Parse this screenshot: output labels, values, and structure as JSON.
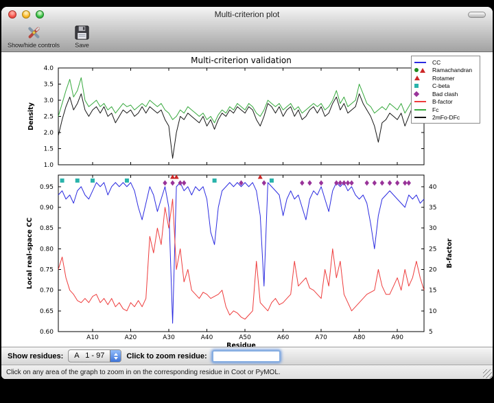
{
  "window": {
    "title": "Multi-criterion plot",
    "toolbar": {
      "controls_button": "Show/hide controls",
      "save_button": "Save"
    }
  },
  "controls": {
    "show_residues_label": "Show residues:",
    "chain_range_value": "A   1 - 97",
    "zoom_label": "Click to zoom residue:",
    "zoom_input_value": "",
    "status_text": "Click on any area of the graph to zoom in on the corresponding residue in Coot or PyMOL."
  },
  "chart_data": {
    "type": "line",
    "title": "Multi-criterion validation",
    "xlabel": "Residue",
    "x_range": [
      1,
      97
    ],
    "x_ticks": [
      [
        10,
        "A10"
      ],
      [
        20,
        "A20"
      ],
      [
        30,
        "A30"
      ],
      [
        40,
        "A40"
      ],
      [
        50,
        "A50"
      ],
      [
        60,
        "A60"
      ],
      [
        70,
        "A70"
      ],
      [
        80,
        "A80"
      ],
      [
        90,
        "A90"
      ]
    ],
    "top_plot": {
      "ylabel": "Density",
      "ylim": [
        1.0,
        4.0
      ],
      "yticks": [
        [
          4.0,
          "4.0"
        ],
        [
          3.5,
          "3.5"
        ],
        [
          3.0,
          "3.0"
        ],
        [
          2.5,
          "2.5"
        ],
        [
          2.0,
          "2.0"
        ],
        [
          1.5,
          "1.5"
        ],
        [
          1.0,
          "1.0"
        ]
      ],
      "series": [
        {
          "name": "Fc",
          "color": "#35a83c",
          "values": [
            2.5,
            2.9,
            3.3,
            3.65,
            3.1,
            3.3,
            3.7,
            3.0,
            2.8,
            2.9,
            3.0,
            2.8,
            2.9,
            2.7,
            2.8,
            2.6,
            2.75,
            2.9,
            2.8,
            2.85,
            2.7,
            2.8,
            2.9,
            2.8,
            3.0,
            2.9,
            2.8,
            2.9,
            2.7,
            2.6,
            2.4,
            2.5,
            2.7,
            2.6,
            2.8,
            2.7,
            2.6,
            2.5,
            2.6,
            2.4,
            2.5,
            2.3,
            2.55,
            2.7,
            2.6,
            2.8,
            2.7,
            2.9,
            2.8,
            2.7,
            2.9,
            2.8,
            2.6,
            2.5,
            2.7,
            3.0,
            2.9,
            2.8,
            2.9,
            2.7,
            2.8,
            2.9,
            2.7,
            2.8,
            2.6,
            2.7,
            2.8,
            2.9,
            2.8,
            2.9,
            2.7,
            2.8,
            3.0,
            3.3,
            2.9,
            3.1,
            2.8,
            2.9,
            3.0,
            3.5,
            3.2,
            2.9,
            2.8,
            2.6,
            2.7,
            2.8,
            2.7,
            2.9,
            2.8,
            2.7,
            2.9,
            2.6,
            2.8,
            3.0,
            3.2,
            3.4,
            2.9
          ]
        },
        {
          "name": "2mFo-DFc",
          "color": "#151515",
          "values": [
            1.9,
            2.4,
            2.8,
            3.1,
            2.7,
            2.9,
            3.2,
            2.7,
            2.5,
            2.7,
            2.8,
            2.6,
            2.8,
            2.5,
            2.6,
            2.3,
            2.5,
            2.7,
            2.6,
            2.7,
            2.5,
            2.6,
            2.8,
            2.6,
            2.8,
            2.7,
            2.6,
            2.7,
            2.4,
            2.2,
            1.2,
            2.0,
            2.5,
            2.4,
            2.6,
            2.5,
            2.4,
            2.3,
            2.5,
            2.2,
            2.4,
            2.1,
            2.4,
            2.6,
            2.5,
            2.7,
            2.6,
            2.8,
            2.7,
            2.6,
            2.8,
            2.7,
            2.4,
            2.2,
            2.5,
            2.9,
            2.8,
            2.6,
            2.8,
            2.5,
            2.7,
            2.8,
            2.5,
            2.7,
            2.4,
            2.5,
            2.7,
            2.8,
            2.6,
            2.8,
            2.5,
            2.6,
            2.9,
            3.1,
            2.7,
            2.9,
            2.6,
            2.7,
            2.8,
            3.2,
            2.9,
            2.7,
            2.5,
            2.2,
            1.7,
            2.3,
            2.4,
            2.6,
            2.5,
            2.4,
            2.6,
            2.2,
            2.5,
            2.8,
            3.0,
            3.2,
            2.6
          ]
        }
      ]
    },
    "bottom_plot": {
      "ylabel_left": "Local real-space CC",
      "ylim_left": [
        0.6,
        0.978
      ],
      "yticks_left": [
        [
          0.6,
          "0.60"
        ],
        [
          0.65,
          "0.65"
        ],
        [
          0.7,
          "0.70"
        ],
        [
          0.75,
          "0.75"
        ],
        [
          0.8,
          "0.80"
        ],
        [
          0.85,
          "0.85"
        ],
        [
          0.9,
          "0.90"
        ],
        [
          0.95,
          "0.95"
        ]
      ],
      "ylabel_right": "B-factor",
      "ylim_right": [
        5,
        42.8
      ],
      "yticks_right": [
        [
          5,
          "5"
        ],
        [
          10,
          "10"
        ],
        [
          15,
          "15"
        ],
        [
          20,
          "20"
        ],
        [
          25,
          "25"
        ],
        [
          30,
          "30"
        ],
        [
          35,
          "35"
        ],
        [
          40,
          "40"
        ]
      ],
      "series": [
        {
          "name": "CC",
          "axis": "left",
          "color": "#2a2ae0",
          "values": [
            0.93,
            0.94,
            0.92,
            0.93,
            0.91,
            0.94,
            0.95,
            0.93,
            0.92,
            0.94,
            0.96,
            0.95,
            0.96,
            0.93,
            0.95,
            0.96,
            0.95,
            0.96,
            0.95,
            0.96,
            0.94,
            0.9,
            0.87,
            0.91,
            0.95,
            0.93,
            0.89,
            0.92,
            0.95,
            0.9,
            0.62,
            0.95,
            0.96,
            0.94,
            0.95,
            0.93,
            0.95,
            0.94,
            0.95,
            0.92,
            0.84,
            0.81,
            0.9,
            0.94,
            0.95,
            0.96,
            0.95,
            0.96,
            0.95,
            0.96,
            0.95,
            0.96,
            0.94,
            0.88,
            0.71,
            0.96,
            0.95,
            0.94,
            0.93,
            0.88,
            0.92,
            0.94,
            0.92,
            0.93,
            0.9,
            0.87,
            0.92,
            0.94,
            0.93,
            0.95,
            0.92,
            0.89,
            0.94,
            0.96,
            0.95,
            0.96,
            0.94,
            0.95,
            0.93,
            0.92,
            0.93,
            0.91,
            0.86,
            0.8,
            0.88,
            0.92,
            0.93,
            0.94,
            0.93,
            0.92,
            0.91,
            0.9,
            0.93,
            0.92,
            0.93,
            0.91,
            0.92
          ]
        },
        {
          "name": "B-factor",
          "axis": "right",
          "color": "#ee3b3b",
          "values": [
            20,
            23,
            18,
            15,
            14,
            12.5,
            12,
            13,
            12,
            13.5,
            14,
            12,
            13,
            11.5,
            13,
            11,
            12,
            10.5,
            10,
            12,
            11,
            12.5,
            11,
            13,
            28,
            24,
            30,
            26,
            35,
            30,
            37,
            20,
            25,
            17,
            20,
            15,
            14,
            13,
            14.5,
            14,
            13,
            13.5,
            14,
            15,
            11,
            9,
            10,
            9.5,
            8.5,
            8,
            9,
            10,
            22,
            12,
            11,
            10,
            12,
            13,
            11.5,
            12,
            13,
            14,
            22,
            16,
            17,
            18,
            15.5,
            15,
            14,
            13,
            20,
            16,
            25,
            18,
            22,
            14,
            12,
            10,
            11,
            12,
            13,
            14,
            14.5,
            15,
            20,
            16,
            14,
            14,
            16,
            18,
            15,
            20,
            16,
            18,
            22,
            18,
            15
          ]
        }
      ],
      "markers": [
        {
          "name": "Ramachandran",
          "shape": "triangle",
          "color": "#cc2626",
          "residues": [
            31,
            32
          ]
        },
        {
          "name": "Rotamer",
          "shape": "triangle",
          "color": "#cc2626",
          "residues": [
            54
          ]
        },
        {
          "name": "C-beta",
          "shape": "square",
          "color": "#2ab3ab",
          "residues": [
            2,
            6,
            10,
            19,
            42,
            57
          ]
        },
        {
          "name": "Bad clash",
          "shape": "diamond",
          "color": "#993399",
          "residues": [
            29,
            31,
            33,
            34,
            49,
            55,
            65,
            67,
            70,
            74,
            75,
            76,
            77,
            78,
            82,
            84,
            86,
            88,
            90,
            92,
            93
          ]
        }
      ]
    },
    "legend": [
      {
        "label": "CC",
        "line": "#2a2ae0"
      },
      {
        "label": "Ramachandran",
        "markers": [
          {
            "shape": "circle",
            "color": "#1e8c1e"
          },
          {
            "shape": "triangle",
            "color": "#cc2626"
          }
        ]
      },
      {
        "label": "Rotamer",
        "markers": [
          {
            "shape": "triangle",
            "color": "#cc2626"
          }
        ]
      },
      {
        "label": "C-beta",
        "markers": [
          {
            "shape": "square",
            "color": "#2ab3ab"
          }
        ]
      },
      {
        "label": "Bad clash",
        "markers": [
          {
            "shape": "diamond",
            "color": "#993399"
          }
        ]
      },
      {
        "label": "B-factor",
        "line": "#ee3b3b"
      },
      {
        "label": "Fc",
        "line": "#35a83c"
      },
      {
        "label": "2mFo-DFc",
        "line": "#151515"
      }
    ]
  }
}
